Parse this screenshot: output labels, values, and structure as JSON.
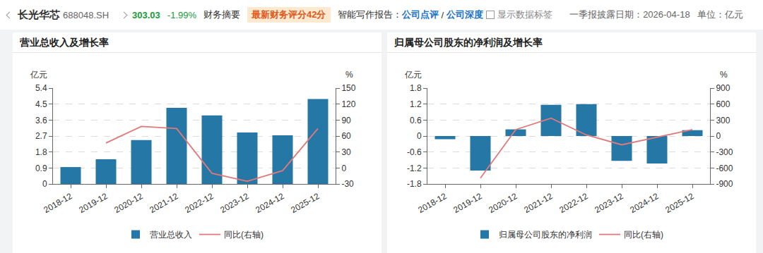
{
  "header": {
    "name": "长光华芯",
    "code": "688048.SH",
    "price": "303.03",
    "change": "-1.99%",
    "tab": "财务摘要",
    "score": "最新财务评分42分",
    "report_label": "智能写作报告：",
    "report_1": "公司点评",
    "separator": "/",
    "report_2": "公司深度",
    "checkbox": "显示数据标签",
    "date": "一季报披露日期：2026-04-18",
    "unit": "单位：亿元"
  },
  "chart_data": [
    {
      "type": "bar",
      "title": "营业总收入及增长率",
      "ylabel": "亿元",
      "y2label": "%",
      "categories": [
        "2018-12",
        "2019-12",
        "2020-12",
        "2021-12",
        "2022-12",
        "2023-12",
        "2024-12",
        "2025-12"
      ],
      "series": [
        {
          "name": "营业总收入",
          "type": "bar",
          "color": "#2577a6",
          "values": [
            0.95,
            1.39,
            2.47,
            4.29,
            3.86,
            2.9,
            2.74,
            4.78
          ]
        },
        {
          "name": "同比(右轴)",
          "type": "line",
          "axis": "y2",
          "color": "#e07a7a",
          "values": [
            null,
            47,
            78,
            74,
            -10,
            -25,
            -5,
            74
          ]
        }
      ],
      "ylim": [
        0,
        5.4
      ],
      "yticks": [
        0,
        0.9,
        1.8,
        2.7,
        3.6,
        4.5,
        5.4
      ],
      "y2lim": [
        -30,
        150
      ],
      "y2ticks": [
        -30,
        0,
        30,
        60,
        90,
        120,
        150
      ],
      "grid": true,
      "legend": "bottom"
    },
    {
      "type": "bar",
      "title": "归属母公司股东的净利润及增长率",
      "ylabel": "亿元",
      "y2label": "%",
      "categories": [
        "2018-12",
        "2019-12",
        "2020-12",
        "2021-12",
        "2022-12",
        "2023-12",
        "2024-12",
        "2025-12"
      ],
      "series": [
        {
          "name": "归属母公司股东的净利润",
          "type": "bar",
          "color": "#2577a6",
          "values": [
            -0.12,
            -1.3,
            0.25,
            1.17,
            1.2,
            -0.93,
            -1.03,
            0.22
          ]
        },
        {
          "name": "同比(右轴)",
          "type": "line",
          "axis": "y2",
          "color": "#e07a7a",
          "values": [
            null,
            -790,
            120,
            335,
            20,
            -165,
            -20,
            120
          ]
        }
      ],
      "ylim": [
        -1.8,
        1.8
      ],
      "yticks": [
        -1.8,
        -1.2,
        -0.6,
        0,
        0.6,
        1.2,
        1.8
      ],
      "y2lim": [
        -900,
        900
      ],
      "y2ticks": [
        -900,
        -600,
        -300,
        0,
        300,
        600,
        900
      ],
      "grid": true,
      "legend": "bottom"
    }
  ]
}
